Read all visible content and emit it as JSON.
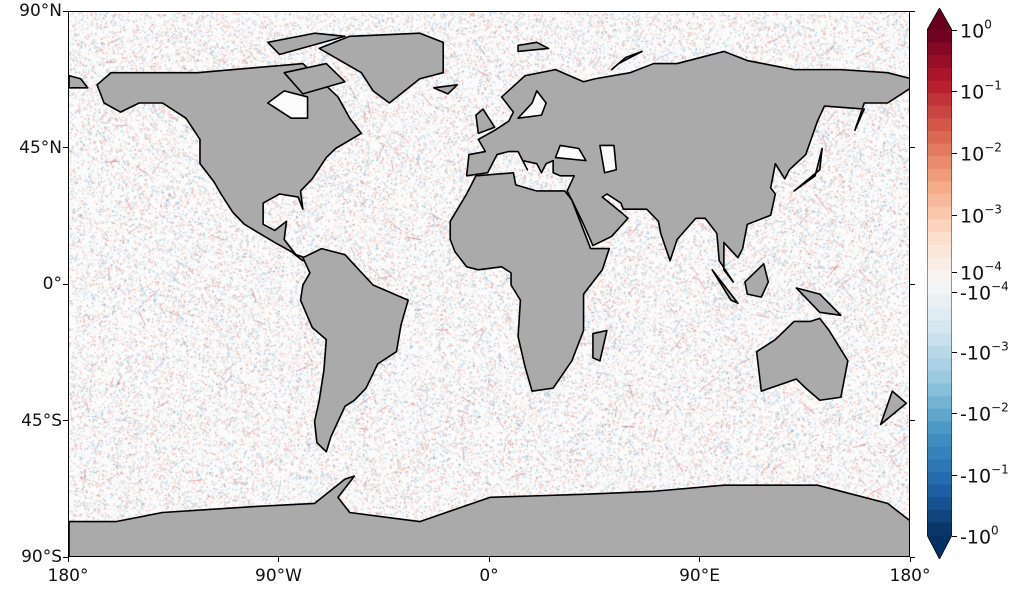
{
  "map": {
    "ocean_color": "#fbfbfb",
    "land_color": "#aaaaaa",
    "coast_color": "#000000",
    "lat_ticks": [
      {
        "label": "90°N",
        "lat": 90
      },
      {
        "label": "45°N",
        "lat": 45
      },
      {
        "label": "0°",
        "lat": 0
      },
      {
        "label": "45°S",
        "lat": -45
      },
      {
        "label": "90°S",
        "lat": -90
      }
    ],
    "lon_ticks": [
      {
        "label": "180°",
        "lon": -180
      },
      {
        "label": "90°W",
        "lon": -90
      },
      {
        "label": "0°",
        "lon": 0
      },
      {
        "label": "90°E",
        "lon": 90
      },
      {
        "label": "180°",
        "lon": 180
      }
    ]
  },
  "colorbar": {
    "colormap": "RdBu_r",
    "extend": "both",
    "scale": "symlog",
    "ticks": [
      {
        "sign": "",
        "base": "10",
        "exp": "0"
      },
      {
        "sign": "",
        "base": "10",
        "exp": "−1"
      },
      {
        "sign": "",
        "base": "10",
        "exp": "−2"
      },
      {
        "sign": "",
        "base": "10",
        "exp": "−3"
      },
      {
        "sign": "",
        "base": "10",
        "exp": "−4"
      },
      {
        "sign": "-",
        "base": "10",
        "exp": "−4"
      },
      {
        "sign": "-",
        "base": "10",
        "exp": "−3"
      },
      {
        "sign": "-",
        "base": "10",
        "exp": "−2"
      },
      {
        "sign": "-",
        "base": "10",
        "exp": "−1"
      },
      {
        "sign": "-",
        "base": "10",
        "exp": "0"
      }
    ],
    "colors": [
      "#67001f",
      "#b2182b",
      "#d6604d",
      "#f4a582",
      "#fddbc7",
      "#f7f7f7",
      "#d1e5f0",
      "#92c5de",
      "#4393c3",
      "#2166ac",
      "#053061"
    ]
  }
}
